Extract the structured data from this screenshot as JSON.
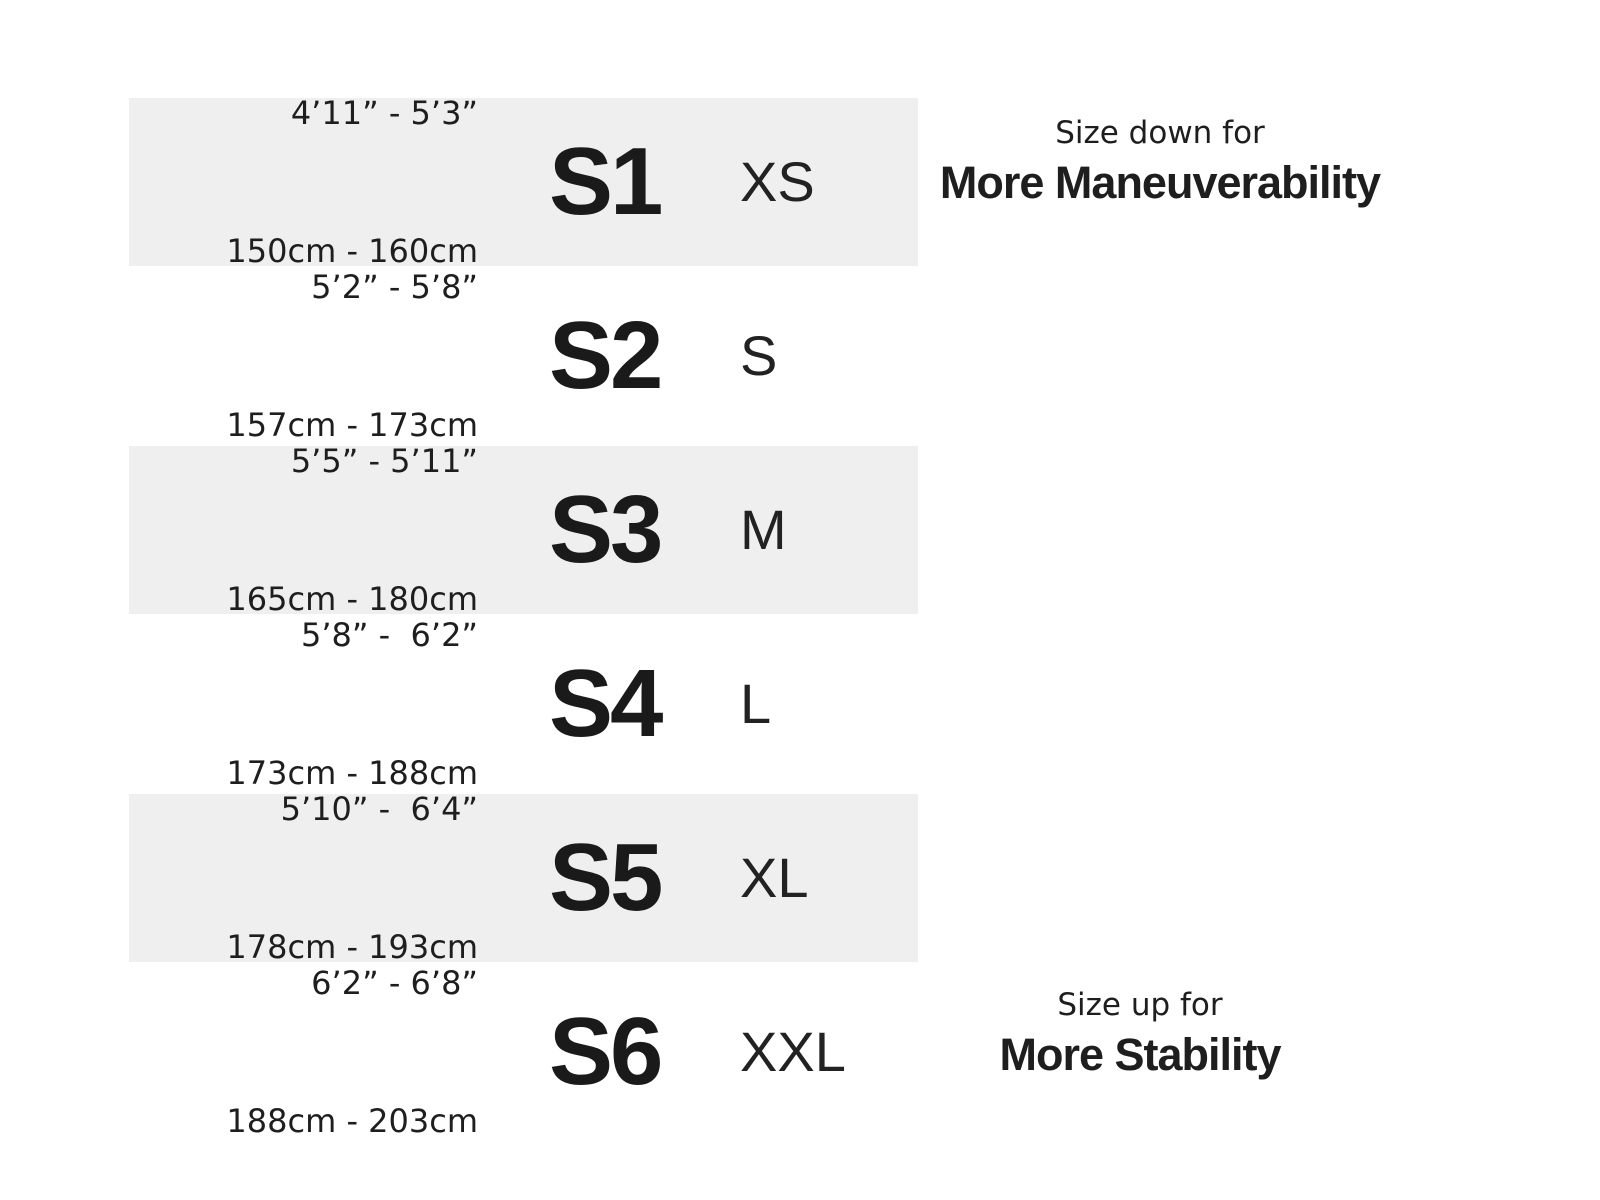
{
  "colors": {
    "background": "#ffffff",
    "band": "#efefef",
    "text": "#1e1e1e"
  },
  "chart_data": {
    "type": "table",
    "rows": [
      {
        "height_imperial": "4’11” - 5’3”",
        "height_metric": "150cm - 160cm",
        "s_size": "S1",
        "letter_size": "XS",
        "shaded": true
      },
      {
        "height_imperial": "5’2” - 5’8”",
        "height_metric": "157cm - 173cm",
        "s_size": "S2",
        "letter_size": "S",
        "shaded": false
      },
      {
        "height_imperial": "5’5” - 5’11”",
        "height_metric": "165cm - 180cm",
        "s_size": "S3",
        "letter_size": "M",
        "shaded": true
      },
      {
        "height_imperial": "5’8” -  6’2”",
        "height_metric": "173cm - 188cm",
        "s_size": "S4",
        "letter_size": "L",
        "shaded": false
      },
      {
        "height_imperial": "5’10” -  6’4”",
        "height_metric": "178cm - 193cm",
        "s_size": "S5",
        "letter_size": "XL",
        "shaded": true
      },
      {
        "height_imperial": "6’2” - 6’8”",
        "height_metric": "188cm - 203cm",
        "s_size": "S6",
        "letter_size": "XXL",
        "shaded": false
      }
    ],
    "annotations": {
      "top": {
        "line1": "Size down for",
        "line2": "More Maneuverability"
      },
      "bottom": {
        "line1": "Size up for",
        "line2": "More Stability"
      }
    }
  }
}
